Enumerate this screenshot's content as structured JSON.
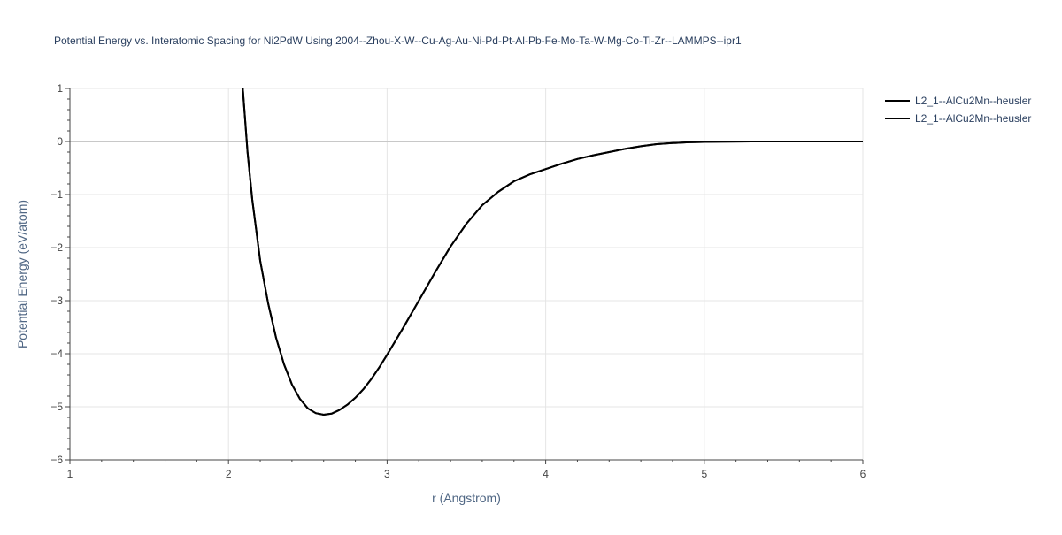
{
  "chart_data": {
    "type": "line",
    "title": "Potential Energy vs. Interatomic Spacing for Ni2PdW Using 2004--Zhou-X-W--Cu-Ag-Au-Ni-Pd-Pt-Al-Pb-Fe-Mo-Ta-W-Mg-Co-Ti-Zr--LAMMPS--ipr1",
    "xlabel": "r (Angstrom)",
    "ylabel": "Potential Energy (eV/atom)",
    "xlim": [
      1,
      6
    ],
    "ylim": [
      -6,
      1
    ],
    "x_ticks": [
      1,
      2,
      3,
      4,
      5,
      6
    ],
    "y_ticks": [
      1,
      0,
      -1,
      -2,
      -3,
      -4,
      -5,
      -6
    ],
    "x_tick_labels": [
      "1",
      "2",
      "3",
      "4",
      "5",
      "6"
    ],
    "y_tick_labels": [
      "1",
      "0",
      "−1",
      "−2",
      "−3",
      "−4",
      "−5",
      "−6"
    ],
    "grid": true,
    "legend_position": "top-right",
    "colors": {
      "line": "#000000",
      "grid": "#e5e5e5",
      "zero_line": "#c8c8c8",
      "axis": "#444444",
      "title": "#2a3f5f",
      "axis_label": "#506784"
    },
    "series": [
      {
        "name": "L2_1--AlCu2Mn--heusler",
        "x": [
          2.09,
          2.1,
          2.12,
          2.15,
          2.2,
          2.25,
          2.3,
          2.35,
          2.4,
          2.45,
          2.5,
          2.55,
          2.6,
          2.65,
          2.7,
          2.75,
          2.8,
          2.85,
          2.9,
          2.95,
          3.0,
          3.1,
          3.2,
          3.3,
          3.4,
          3.5,
          3.6,
          3.7,
          3.8,
          3.9,
          4.0,
          4.1,
          4.2,
          4.3,
          4.4,
          4.5,
          4.6,
          4.7,
          4.8,
          4.9,
          5.0,
          5.1,
          5.2,
          5.3,
          5.5,
          6.0
        ],
        "y": [
          1.0,
          0.6,
          -0.2,
          -1.1,
          -2.25,
          -3.05,
          -3.7,
          -4.2,
          -4.58,
          -4.85,
          -5.03,
          -5.12,
          -5.15,
          -5.13,
          -5.06,
          -4.96,
          -4.83,
          -4.67,
          -4.48,
          -4.26,
          -4.02,
          -3.52,
          -3.0,
          -2.48,
          -1.98,
          -1.55,
          -1.2,
          -0.95,
          -0.75,
          -0.62,
          -0.52,
          -0.42,
          -0.33,
          -0.26,
          -0.2,
          -0.14,
          -0.09,
          -0.05,
          -0.03,
          -0.015,
          -0.008,
          -0.004,
          -0.002,
          -0.001,
          0.0,
          0.0
        ]
      },
      {
        "name": "L2_1--AlCu2Mn--heusler",
        "x": [
          2.09,
          2.1,
          2.12,
          2.15,
          2.2,
          2.25,
          2.3,
          2.35,
          2.4,
          2.45,
          2.5,
          2.55,
          2.6,
          2.65,
          2.7,
          2.75,
          2.8,
          2.85,
          2.9,
          2.95,
          3.0,
          3.1,
          3.2,
          3.3,
          3.4,
          3.5,
          3.6,
          3.7,
          3.8,
          3.9,
          4.0,
          4.1,
          4.2,
          4.3,
          4.4,
          4.5,
          4.6,
          4.7,
          4.8,
          4.9,
          5.0,
          5.1,
          5.2,
          5.3,
          5.5,
          6.0
        ],
        "y": [
          1.0,
          0.6,
          -0.2,
          -1.1,
          -2.25,
          -3.05,
          -3.7,
          -4.2,
          -4.58,
          -4.85,
          -5.03,
          -5.12,
          -5.15,
          -5.13,
          -5.06,
          -4.96,
          -4.83,
          -4.67,
          -4.48,
          -4.26,
          -4.02,
          -3.52,
          -3.0,
          -2.48,
          -1.98,
          -1.55,
          -1.2,
          -0.95,
          -0.75,
          -0.62,
          -0.52,
          -0.42,
          -0.33,
          -0.26,
          -0.2,
          -0.14,
          -0.09,
          -0.05,
          -0.03,
          -0.015,
          -0.008,
          -0.004,
          -0.002,
          -0.001,
          0.0,
          0.0
        ]
      }
    ]
  }
}
